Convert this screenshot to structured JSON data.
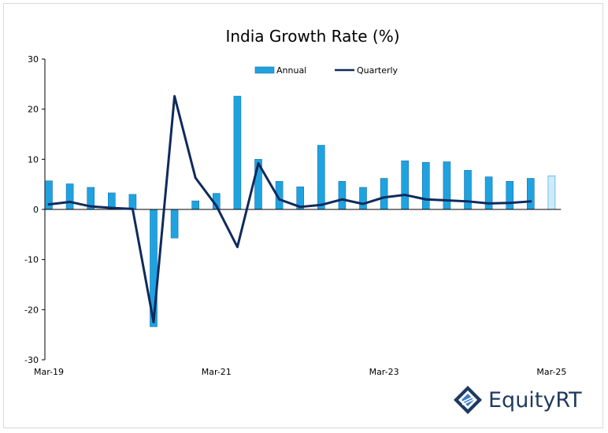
{
  "chart_data": {
    "type": "bar+line",
    "title": "India Growth Rate (%)",
    "xlabel": "",
    "ylabel": "",
    "ylim": [
      -30,
      30
    ],
    "yticks": [
      30,
      20,
      10,
      0,
      -10,
      -20,
      -30
    ],
    "xtick_labels": [
      {
        "label": "Mar-19",
        "index": 0
      },
      {
        "label": "Mar-21",
        "index": 8
      },
      {
        "label": "Mar-23",
        "index": 16
      },
      {
        "label": "Mar-25",
        "index": 24
      }
    ],
    "categories": [
      "Mar-19",
      "Jun-19",
      "Sep-19",
      "Dec-19",
      "Mar-20",
      "Jun-20",
      "Sep-20",
      "Dec-20",
      "Mar-21",
      "Jun-21",
      "Sep-21",
      "Dec-21",
      "Mar-22",
      "Jun-22",
      "Sep-22",
      "Dec-22",
      "Mar-23",
      "Jun-23",
      "Sep-23",
      "Dec-23",
      "Mar-24",
      "Jun-24",
      "Sep-24",
      "Dec-24",
      "Mar-25"
    ],
    "series": [
      {
        "name": "Annual",
        "kind": "bar",
        "color": "#1fa3e0",
        "values": [
          5.7,
          5.1,
          4.4,
          3.3,
          3.0,
          -23.4,
          -5.7,
          1.7,
          3.2,
          22.6,
          10.0,
          5.6,
          4.5,
          12.8,
          5.6,
          4.4,
          6.2,
          9.7,
          9.4,
          9.5,
          7.8,
          6.5,
          5.6,
          6.2,
          6.7
        ],
        "projected_index": 24,
        "projected_color": "#cfeaf8"
      },
      {
        "name": "Quarterly",
        "kind": "line",
        "color": "#0f2a5c",
        "values": [
          1.0,
          1.5,
          0.6,
          0.3,
          0.1,
          -22.5,
          22.6,
          6.3,
          0.7,
          -7.5,
          9.2,
          2.0,
          0.5,
          0.9,
          2.0,
          1.1,
          2.4,
          2.9,
          2.0,
          1.8,
          1.6,
          1.2,
          1.3,
          1.6,
          null
        ]
      }
    ]
  },
  "branding": {
    "logo_text": "EquityRT",
    "logo_color": "#1f3a5f",
    "logo_icon": "equityrt-logo-icon"
  }
}
